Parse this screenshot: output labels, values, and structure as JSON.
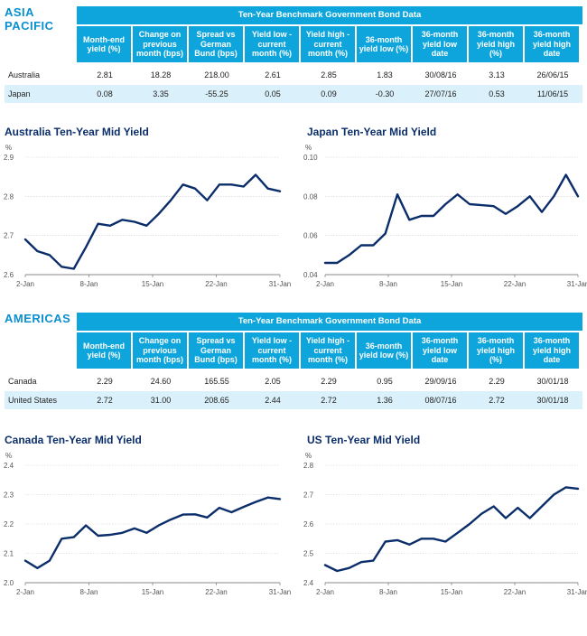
{
  "tables": [
    {
      "region": [
        "ASIA",
        "PACIFIC"
      ],
      "title": "Ten-Year Benchmark Government Bond Data",
      "headers": [
        "Month-end yield (%)",
        "Change on previous month (bps)",
        "Spread vs German Bund (bps)",
        "Yield low - current month (%)",
        "Yield high - current month (%)",
        "36-month yield low (%)",
        "36-month yield low date",
        "36-month yield high (%)",
        "36-month yield high date"
      ],
      "rows": [
        {
          "label": "Australia",
          "cells": [
            "2.81",
            "18.28",
            "218.00",
            "2.61",
            "2.85",
            "1.83",
            "30/08/16",
            "3.13",
            "26/06/15"
          ]
        },
        {
          "label": "Japan",
          "cells": [
            "0.08",
            "3.35",
            "-55.25",
            "0.05",
            "0.09",
            "-0.30",
            "27/07/16",
            "0.53",
            "11/06/15"
          ]
        }
      ]
    },
    {
      "region": [
        "AMERICAS"
      ],
      "title": "Ten-Year Benchmark Government Bond Data",
      "headers": [
        "Month-end yield (%)",
        "Change on previous month (bps)",
        "Spread vs German Bund (bps)",
        "Yield low - current month (%)",
        "Yield high - current month (%)",
        "36-month yield low (%)",
        "36-month yield low date",
        "36-month yield high (%)",
        "36-month yield high date"
      ],
      "rows": [
        {
          "label": "Canada",
          "cells": [
            "2.29",
            "24.60",
            "165.55",
            "2.05",
            "2.29",
            "0.95",
            "29/09/16",
            "2.29",
            "30/01/18"
          ]
        },
        {
          "label": "United States",
          "cells": [
            "2.72",
            "31.00",
            "208.65",
            "2.44",
            "2.72",
            "1.36",
            "08/07/16",
            "2.72",
            "30/01/18"
          ]
        }
      ]
    }
  ],
  "chart_data": [
    {
      "type": "line",
      "title": "Australia Ten-Year Mid Yield",
      "ylabel": "%",
      "ylim": [
        2.6,
        2.9
      ],
      "yticks": [
        "2.9",
        "2.8",
        "2.7",
        "2.6"
      ],
      "xticks": [
        "2-Jan",
        "8-Jan",
        "15-Jan",
        "22-Jan",
        "31-Jan"
      ],
      "grid": true,
      "color": "#0b2e6b",
      "values": [
        2.69,
        2.66,
        2.65,
        2.62,
        2.615,
        2.67,
        2.73,
        2.725,
        2.74,
        2.735,
        2.725,
        2.755,
        2.79,
        2.83,
        2.82,
        2.79,
        2.83,
        2.83,
        2.825,
        2.855,
        2.82,
        2.813
      ]
    },
    {
      "type": "line",
      "title": "Japan Ten-Year Mid Yield",
      "ylabel": "%",
      "ylim": [
        0.04,
        0.1
      ],
      "yticks": [
        "0.10",
        "0.08",
        "0.06",
        "0.04"
      ],
      "xticks": [
        "2-Jan",
        "8-Jan",
        "15-Jan",
        "22-Jan",
        "31-Jan"
      ],
      "grid": true,
      "color": "#0b2e6b",
      "values": [
        0.046,
        0.046,
        0.05,
        0.055,
        0.055,
        0.061,
        0.081,
        0.068,
        0.07,
        0.07,
        0.076,
        0.081,
        0.076,
        0.0755,
        0.075,
        0.071,
        0.075,
        0.08,
        0.072,
        0.08,
        0.091,
        0.08
      ]
    },
    {
      "type": "line",
      "title": "Canada Ten-Year Mid Yield",
      "ylabel": "%",
      "ylim": [
        2.0,
        2.4
      ],
      "yticks": [
        "2.4",
        "2.3",
        "2.2",
        "2.1",
        "2.0"
      ],
      "xticks": [
        "2-Jan",
        "8-Jan",
        "15-Jan",
        "22-Jan",
        "31-Jan"
      ],
      "grid": true,
      "color": "#0b2e6b",
      "values": [
        2.075,
        2.05,
        2.075,
        2.15,
        2.155,
        2.195,
        2.16,
        2.163,
        2.17,
        2.185,
        2.17,
        2.195,
        2.215,
        2.232,
        2.233,
        2.222,
        2.255,
        2.24,
        2.258,
        2.275,
        2.29,
        2.285
      ]
    },
    {
      "type": "line",
      "title": "US Ten-Year Mid Yield",
      "ylabel": "%",
      "ylim": [
        2.4,
        2.8
      ],
      "yticks": [
        "2.8",
        "2.7",
        "2.6",
        "2.5",
        "2.4"
      ],
      "xticks": [
        "2-Jan",
        "8-Jan",
        "15-Jan",
        "22-Jan",
        "31-Jan"
      ],
      "grid": true,
      "color": "#0b2e6b",
      "values": [
        2.46,
        2.44,
        2.45,
        2.47,
        2.475,
        2.54,
        2.545,
        2.53,
        2.55,
        2.55,
        2.54,
        2.57,
        2.6,
        2.635,
        2.66,
        2.62,
        2.655,
        2.62,
        2.66,
        2.7,
        2.725,
        2.72
      ]
    }
  ]
}
